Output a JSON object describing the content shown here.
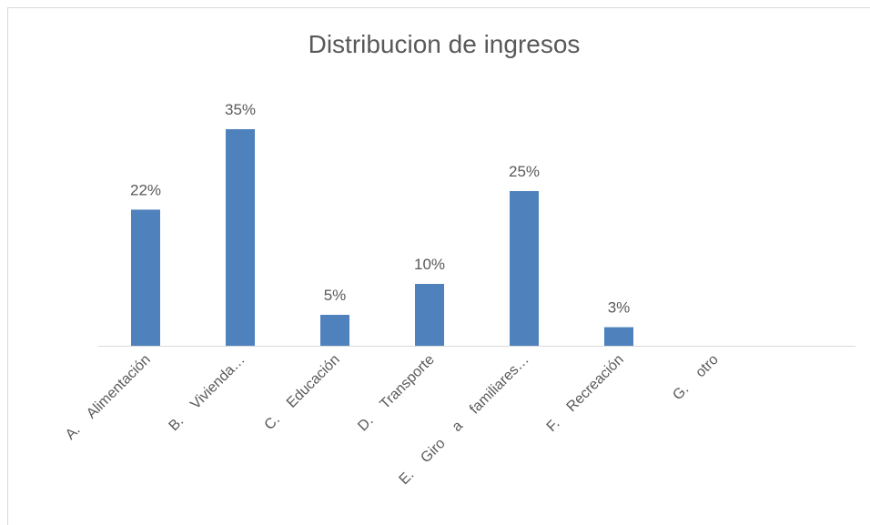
{
  "chart_data": {
    "type": "bar",
    "title": "Distribucion de ingresos",
    "categories": [
      "A. Alimentación",
      "B. Vivienda…",
      "C. Educación",
      "D. Transporte",
      "E. Giro a familiares…",
      "F. Recreación",
      "G. otro"
    ],
    "values": [
      22,
      35,
      5,
      10,
      25,
      3,
      null
    ],
    "value_labels": [
      "22%",
      "35%",
      "5%",
      "10%",
      "25%",
      "3%",
      null
    ],
    "color": "#4f81bd",
    "ylim": [
      0,
      40
    ]
  }
}
